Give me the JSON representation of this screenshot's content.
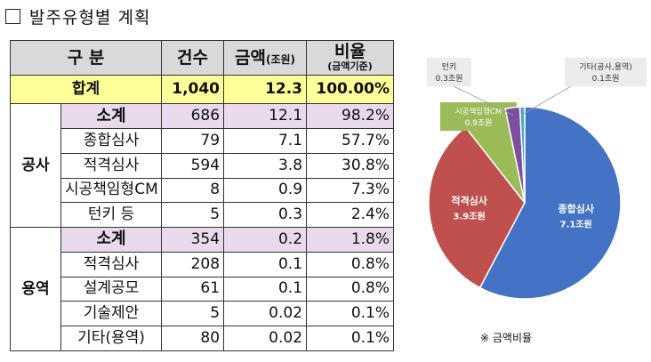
{
  "title": "발주유형별 계획",
  "table": {
    "headers": {
      "category": "구 분",
      "count": "건수",
      "amount_main": "금액",
      "amount_unit": "(조원)",
      "ratio_main": "비율",
      "ratio_sub": "(금액기준)"
    },
    "total": {
      "label": "합계",
      "count": "1,040",
      "amount": "12.3",
      "ratio": "100.00%"
    },
    "groups": [
      {
        "category": "공사",
        "subtotal": {
          "label": "소계",
          "count": "686",
          "amount": "12.1",
          "ratio": "98.2%"
        },
        "rows": [
          {
            "name": "종합심사",
            "count": "79",
            "amount": "7.1",
            "ratio": "57.7%"
          },
          {
            "name": "적격심사",
            "count": "594",
            "amount": "3.8",
            "ratio": "30.8%"
          },
          {
            "name": "시공책임형CM",
            "count": "8",
            "amount": "0.9",
            "ratio": "7.3%"
          },
          {
            "name": "턴키 등",
            "count": "5",
            "amount": "0.3",
            "ratio": "2.4%"
          }
        ]
      },
      {
        "category": "용역",
        "subtotal": {
          "label": "소계",
          "count": "354",
          "amount": "0.2",
          "ratio": "1.8%"
        },
        "rows": [
          {
            "name": "적격심사",
            "count": "208",
            "amount": "0.1",
            "ratio": "0.8%"
          },
          {
            "name": "설계공모",
            "count": "61",
            "amount": "0.1",
            "ratio": "0.8%"
          },
          {
            "name": "기술제안",
            "count": "5",
            "amount": "0.02",
            "ratio": "0.1%"
          },
          {
            "name": "기타(용역)",
            "count": "80",
            "amount": "0.02",
            "ratio": "0.1%"
          }
        ]
      }
    ]
  },
  "chart_data": {
    "type": "pie",
    "title": "",
    "caption": "※ 금액비율",
    "slices": [
      {
        "name": "종합심사",
        "value": 7.1,
        "label": "7.1조원",
        "color": "#4472c4"
      },
      {
        "name": "적격심사",
        "value": 3.9,
        "label": "3.9조원",
        "color": "#c0504d"
      },
      {
        "name": "시공책임형CM",
        "value": 0.9,
        "label": "0.9조원",
        "color": "#9bbb59"
      },
      {
        "name": "턴키",
        "value": 0.3,
        "label": "0.3조원",
        "color": "#7f4f9f"
      },
      {
        "name": "기타(공사,용역)",
        "value": 0.1,
        "label": "0.1조원",
        "color": "#4bacc6"
      }
    ]
  },
  "colors": {
    "header_bg": "#d9d9d9",
    "total_bg": "#ffff99",
    "subtotal_bg": "#e8d9ec"
  }
}
